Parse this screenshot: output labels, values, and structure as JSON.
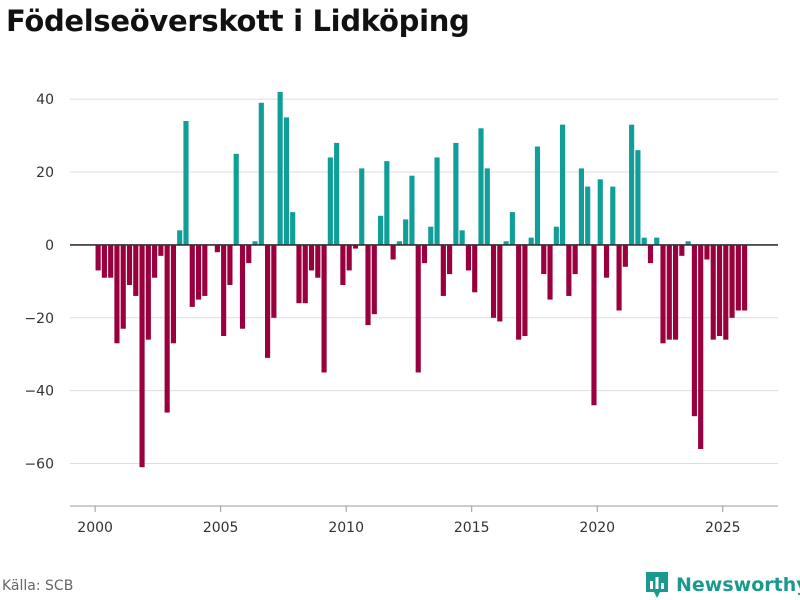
{
  "header": {
    "title": "Födelseöverskott i Lidköping"
  },
  "footer": {
    "source": "Källa: SCB",
    "brand": "Newsworthy"
  },
  "colors": {
    "positive": "#0f9e98",
    "negative": "#99003d",
    "grid": "#dddddd",
    "zero_line": "#333333",
    "brand": "#1a9a8e"
  },
  "chart_data": {
    "type": "bar",
    "title": "Födelseöverskott i Lidköping",
    "xlabel": "",
    "ylabel": "",
    "xlim": [
      1999,
      2027.2
    ],
    "ylim": [
      -70,
      48
    ],
    "yticks": [
      40,
      20,
      0,
      -20,
      -40,
      -60
    ],
    "xticks": [
      2000,
      2005,
      2010,
      2015,
      2020,
      2025
    ],
    "grid": true,
    "x": [
      2000.12,
      2000.37,
      2000.62,
      2000.87,
      2001.12,
      2001.37,
      2001.62,
      2001.87,
      2002.12,
      2002.37,
      2002.62,
      2002.87,
      2003.12,
      2003.37,
      2003.62,
      2003.87,
      2004.12,
      2004.37,
      2004.62,
      2004.87,
      2005.12,
      2005.37,
      2005.62,
      2005.87,
      2006.12,
      2006.37,
      2006.62,
      2006.87,
      2007.12,
      2007.37,
      2007.62,
      2007.87,
      2008.12,
      2008.37,
      2008.62,
      2008.87,
      2009.12,
      2009.37,
      2009.62,
      2009.87,
      2010.12,
      2010.37,
      2010.62,
      2010.87,
      2011.12,
      2011.37,
      2011.62,
      2011.87,
      2012.12,
      2012.37,
      2012.62,
      2012.87,
      2013.12,
      2013.37,
      2013.62,
      2013.87,
      2014.12,
      2014.37,
      2014.62,
      2014.87,
      2015.12,
      2015.37,
      2015.62,
      2015.87,
      2016.12,
      2016.37,
      2016.62,
      2016.87,
      2017.12,
      2017.37,
      2017.62,
      2017.87,
      2018.12,
      2018.37,
      2018.62,
      2018.87,
      2019.12,
      2019.37,
      2019.62,
      2019.87,
      2020.12,
      2020.37,
      2020.62,
      2020.87,
      2021.12,
      2021.37,
      2021.62,
      2021.87,
      2022.12,
      2022.37,
      2022.62,
      2022.87,
      2023.12,
      2023.37,
      2023.62,
      2023.87,
      2024.12,
      2024.37,
      2024.62,
      2024.87,
      2025.12,
      2025.37,
      2025.62,
      2025.87
    ],
    "values": [
      -7,
      -9,
      -9,
      -27,
      -23,
      -11,
      -14,
      -61,
      -26,
      -9,
      -3,
      -46,
      -27,
      4,
      34,
      -17,
      -15,
      -14,
      0,
      -2,
      -25,
      -11,
      25,
      -23,
      -5,
      1,
      39,
      -31,
      -20,
      42,
      35,
      9,
      -16,
      -16,
      -7,
      -9,
      -35,
      24,
      28,
      -11,
      -7,
      -1,
      21,
      -22,
      -19,
      8,
      23,
      -4,
      1,
      7,
      19,
      -35,
      -5,
      5,
      24,
      -14,
      -8,
      28,
      4,
      -7,
      -13,
      32,
      21,
      -20,
      -21,
      1,
      9,
      -26,
      -25,
      2,
      27,
      -8,
      -15,
      5,
      33,
      -14,
      -8,
      21,
      16,
      -44,
      18,
      -9,
      16,
      -18,
      -6,
      33,
      26,
      2,
      -5,
      2,
      -27,
      -26,
      -26,
      -3,
      1,
      -47,
      -56,
      -4,
      -26,
      -25,
      -26,
      -20,
      -18,
      -18
    ]
  }
}
